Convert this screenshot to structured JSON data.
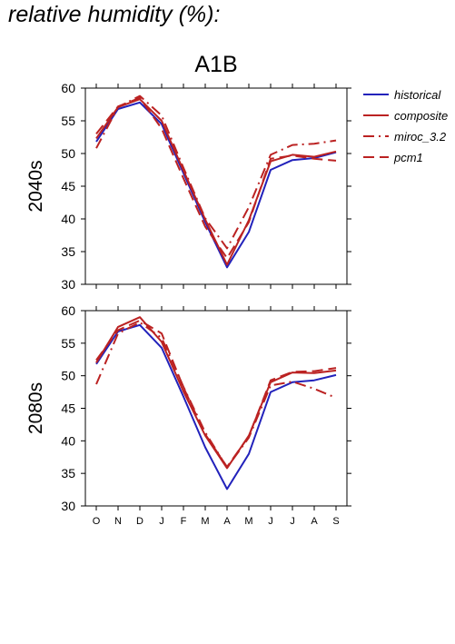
{
  "heading": "relative humidity (%):",
  "chart_data": {
    "type": "line",
    "title": "A1B",
    "x": [
      "O",
      "N",
      "D",
      "J",
      "F",
      "M",
      "A",
      "M",
      "J",
      "J",
      "A",
      "S"
    ],
    "ylim": [
      30,
      60
    ],
    "yticks": [
      30,
      35,
      40,
      45,
      50,
      55,
      60
    ],
    "legend": {
      "placement": "right"
    },
    "series_styles": [
      {
        "name": "historical",
        "color": "#2222bb",
        "dash": "solid"
      },
      {
        "name": "composite",
        "color": "#bb2222",
        "dash": "solid"
      },
      {
        "name": "miroc_3.2",
        "color": "#bb2222",
        "dash": "dashdot"
      },
      {
        "name": "pcm1",
        "color": "#bb2222",
        "dash": "dashed"
      }
    ],
    "panels": [
      {
        "label": "2040s",
        "series": [
          {
            "name": "historical",
            "values": [
              51.8,
              56.8,
              57.8,
              54.5,
              47.0,
              39.5,
              32.6,
              38.0,
              47.5,
              49.0,
              49.3,
              50.2
            ]
          },
          {
            "name": "composite",
            "values": [
              52.3,
              57.1,
              58.3,
              55.0,
              47.4,
              39.9,
              33.0,
              39.8,
              48.8,
              49.8,
              49.5,
              50.3
            ]
          },
          {
            "name": "miroc_3.2",
            "values": [
              50.8,
              57.1,
              58.8,
              55.8,
              47.8,
              40.1,
              35.5,
              41.8,
              49.8,
              51.3,
              51.5,
              52.0
            ]
          },
          {
            "name": "pcm1",
            "values": [
              53.0,
              57.2,
              58.5,
              53.8,
              46.2,
              38.8,
              34.0,
              39.5,
              49.2,
              49.7,
              49.2,
              48.9
            ]
          }
        ]
      },
      {
        "label": "2080s",
        "series": [
          {
            "name": "historical",
            "values": [
              51.8,
              56.8,
              57.8,
              54.3,
              46.8,
              39.0,
              32.6,
              38.0,
              47.5,
              49.0,
              49.3,
              50.1
            ]
          },
          {
            "name": "composite",
            "values": [
              52.0,
              57.5,
              59.0,
              55.2,
              47.6,
              40.8,
              35.8,
              40.8,
              49.0,
              50.5,
              50.4,
              50.8
            ]
          },
          {
            "name": "miroc_3.2",
            "values": [
              48.7,
              56.5,
              58.2,
              55.8,
              48.3,
              41.3,
              35.9,
              40.5,
              48.5,
              49.1,
              48.0,
              46.6
            ]
          },
          {
            "name": "pcm1",
            "values": [
              52.4,
              57.0,
              58.5,
              56.5,
              48.2,
              41.0,
              36.0,
              40.7,
              49.3,
              50.6,
              50.7,
              51.2
            ]
          }
        ]
      }
    ]
  }
}
